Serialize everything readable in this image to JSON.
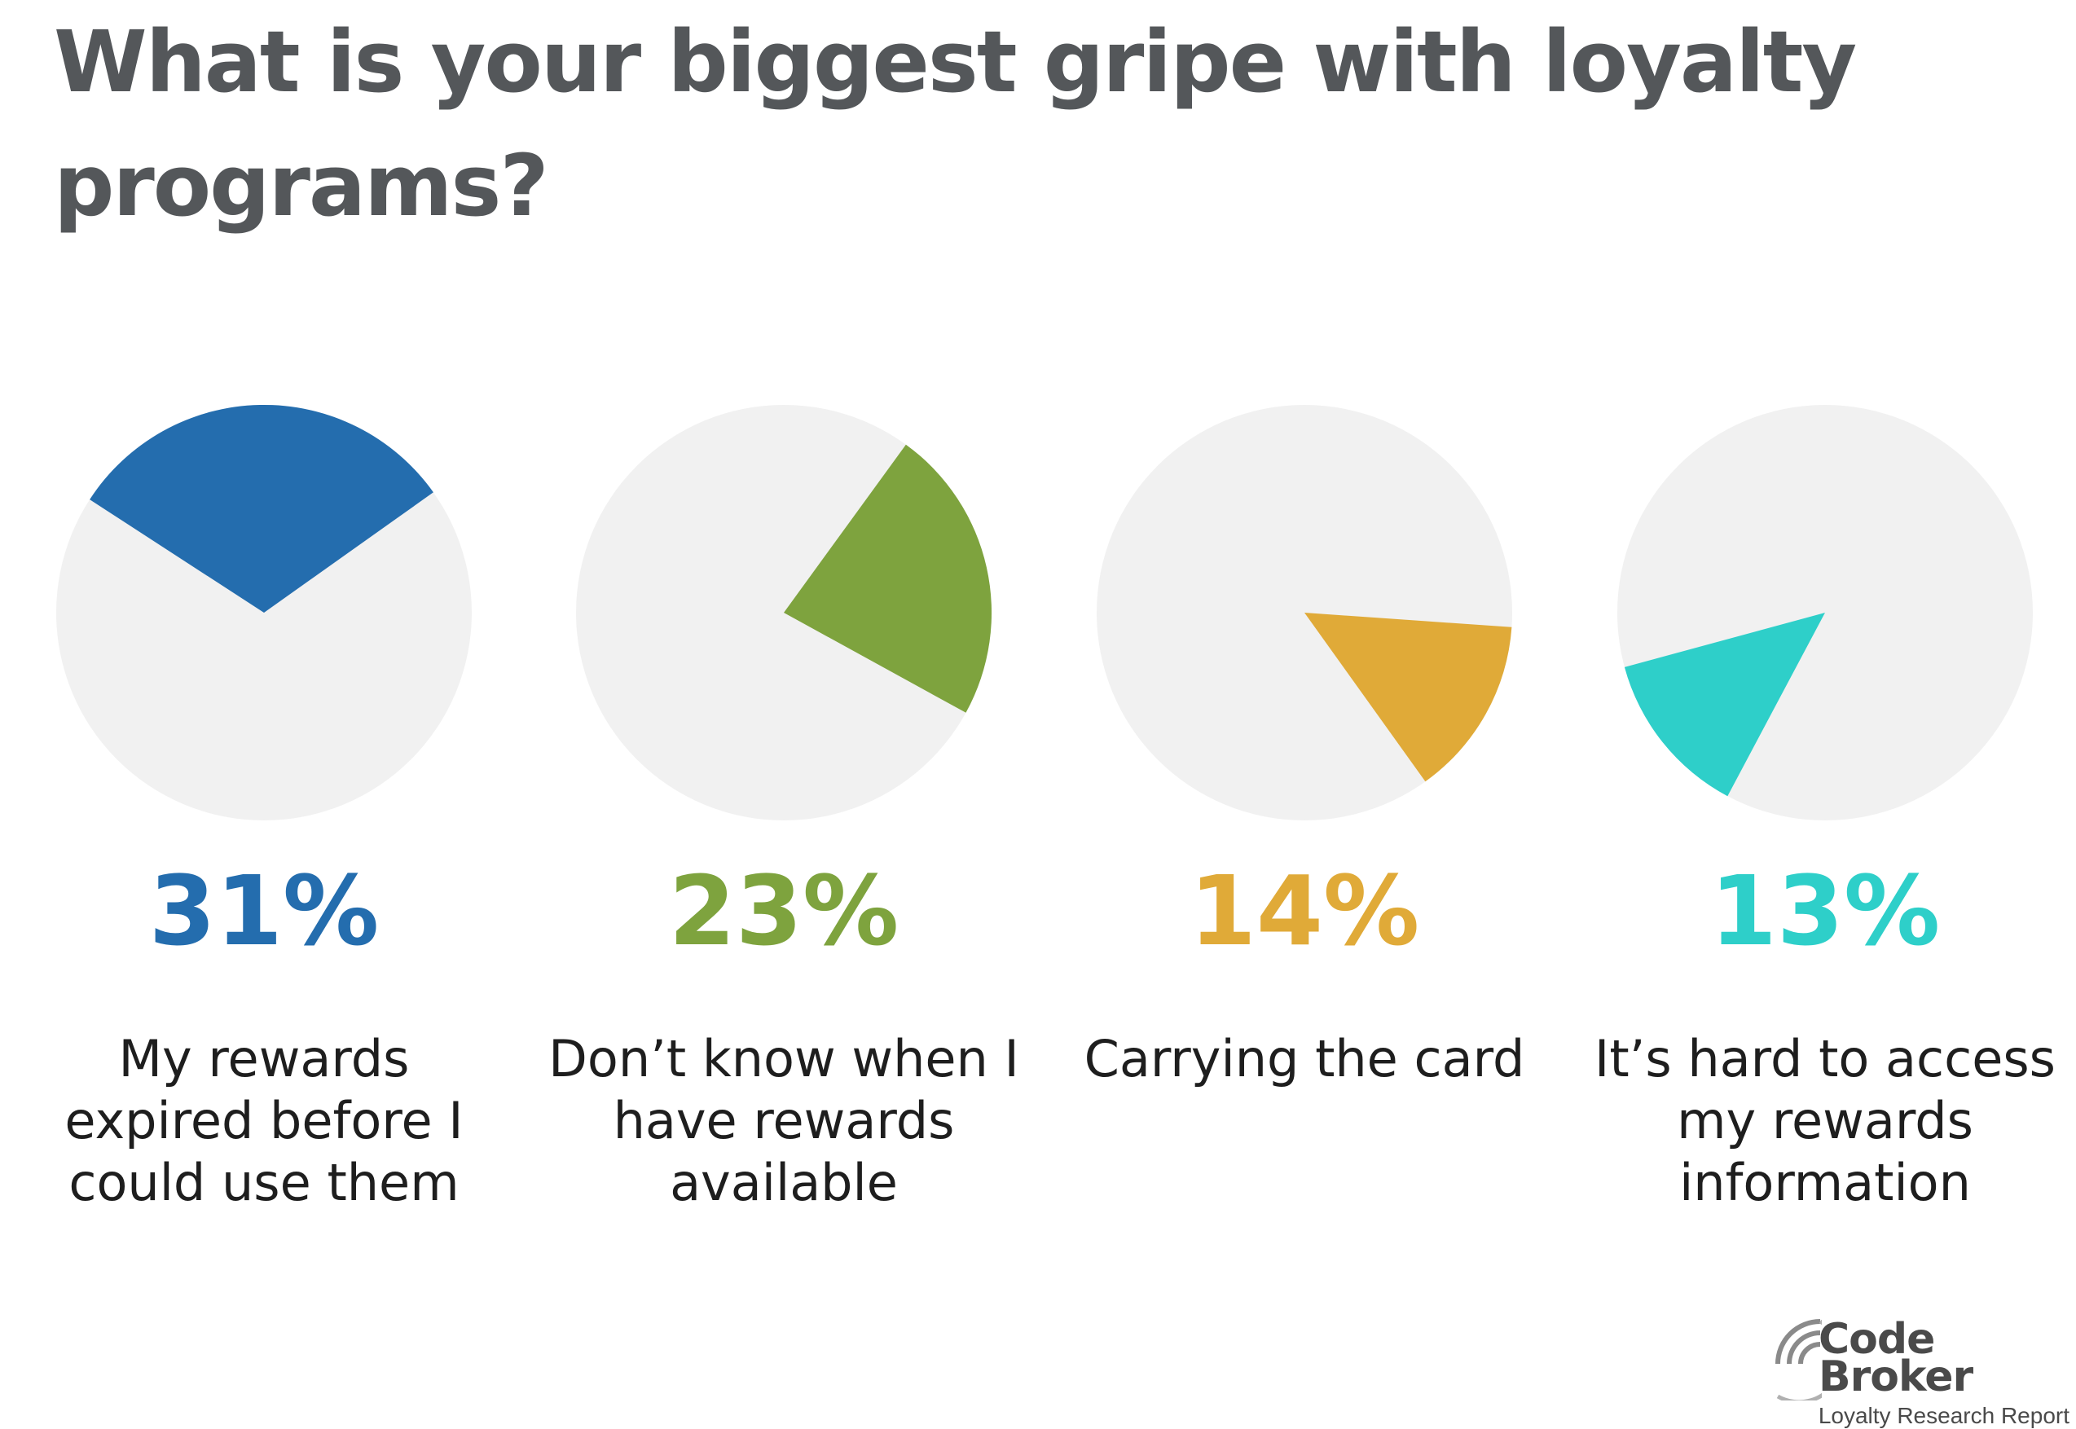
{
  "title": "What is your biggest gripe with loyalty programs?",
  "chart_data": {
    "type": "pie",
    "items": [
      {
        "value": 31,
        "label": "31%",
        "description": "My rewards expired before I could use them",
        "color": "#246dae"
      },
      {
        "value": 23,
        "label": "23%",
        "description": "Don’t know when I have rewards available",
        "color": "#7ea33e"
      },
      {
        "value": 14,
        "label": "14%",
        "description": "Carrying the card",
        "color": "#e0aa38"
      },
      {
        "value": 13,
        "label": "13%",
        "description": "It’s hard to access my rewards information",
        "color": "#2ecfc9"
      }
    ],
    "background_color": "#f1f1f1"
  },
  "logo": {
    "line1": "Code",
    "line2": "Broker",
    "tagline": "Loyalty Research Report"
  }
}
